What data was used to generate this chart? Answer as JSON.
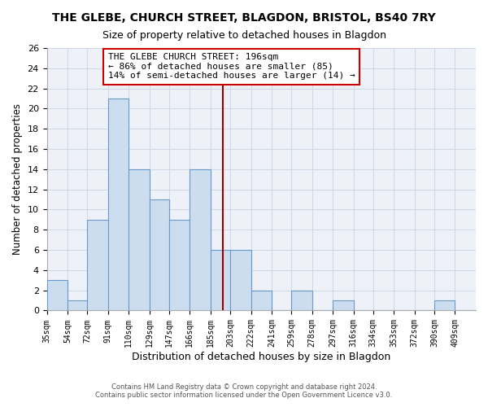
{
  "title": "THE GLEBE, CHURCH STREET, BLAGDON, BRISTOL, BS40 7RY",
  "subtitle": "Size of property relative to detached houses in Blagdon",
  "xlabel": "Distribution of detached houses by size in Blagdon",
  "ylabel": "Number of detached properties",
  "bin_labels": [
    "35sqm",
    "54sqm",
    "72sqm",
    "91sqm",
    "110sqm",
    "129sqm",
    "147sqm",
    "166sqm",
    "185sqm",
    "203sqm",
    "222sqm",
    "241sqm",
    "259sqm",
    "278sqm",
    "297sqm",
    "316sqm",
    "334sqm",
    "353sqm",
    "372sqm",
    "390sqm",
    "409sqm"
  ],
  "bin_edges": [
    35,
    54,
    72,
    91,
    110,
    129,
    147,
    166,
    185,
    203,
    222,
    241,
    259,
    278,
    297,
    316,
    334,
    353,
    372,
    390,
    409
  ],
  "counts": [
    3,
    1,
    9,
    21,
    14,
    11,
    9,
    14,
    6,
    6,
    2,
    0,
    2,
    0,
    1,
    0,
    0,
    0,
    0,
    1,
    0
  ],
  "bar_color": "#ccddf0",
  "bar_edge_color": "#6699cc",
  "vline_x": 196,
  "vline_color": "#990000",
  "annotation_text": "THE GLEBE CHURCH STREET: 196sqm\n← 86% of detached houses are smaller (85)\n14% of semi-detached houses are larger (14) →",
  "annotation_box_color": "white",
  "annotation_box_edge_color": "#cc0000",
  "ylim": [
    0,
    26
  ],
  "yticks": [
    0,
    2,
    4,
    6,
    8,
    10,
    12,
    14,
    16,
    18,
    20,
    22,
    24,
    26
  ],
  "footer_line1": "Contains HM Land Registry data © Crown copyright and database right 2024.",
  "footer_line2": "Contains public sector information licensed under the Open Government Licence v3.0.",
  "grid_color": "#d0d8e8",
  "bg_color": "#eef2f8"
}
